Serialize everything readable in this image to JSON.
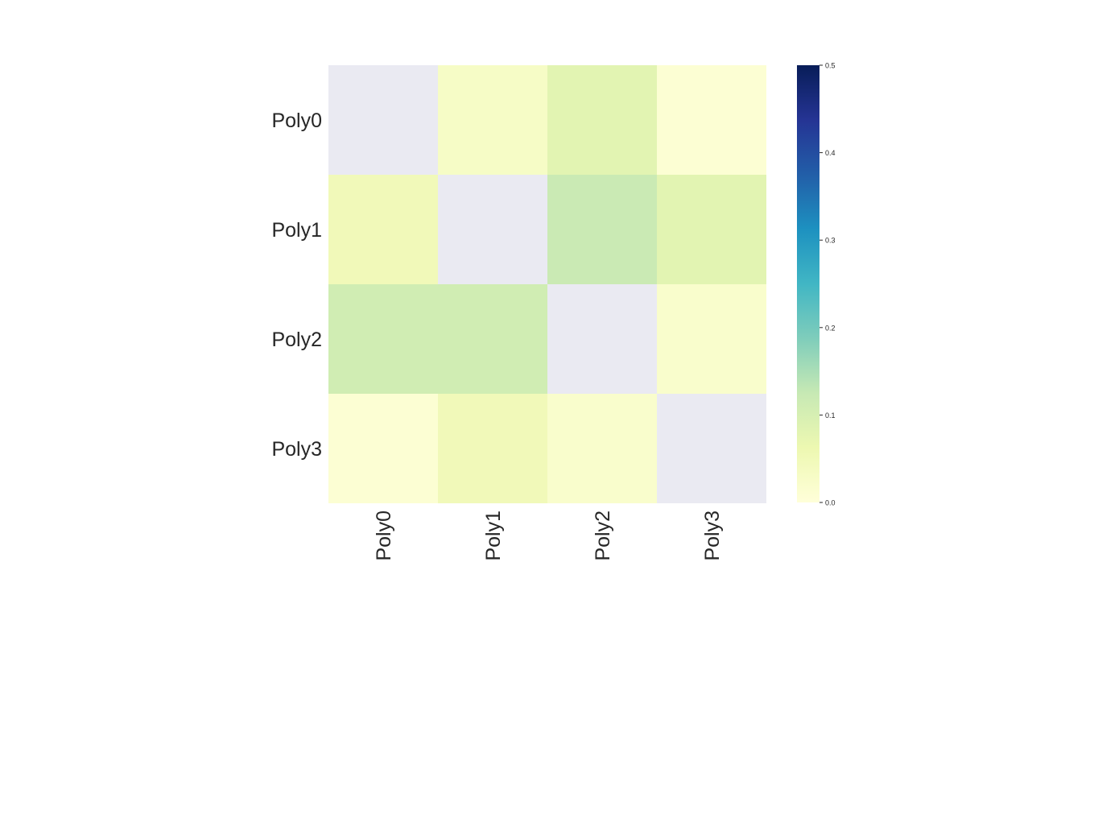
{
  "chart_data": {
    "type": "heatmap",
    "title": "",
    "xlabel": "",
    "ylabel": "",
    "rows": [
      "Poly0",
      "Poly1",
      "Poly2",
      "Poly3"
    ],
    "columns": [
      "Poly0",
      "Poly1",
      "Poly2",
      "Poly3"
    ],
    "values": [
      [
        null,
        0.03,
        0.08,
        0.01
      ],
      [
        0.05,
        null,
        0.12,
        0.08
      ],
      [
        0.11,
        0.11,
        null,
        0.02
      ],
      [
        0.01,
        0.05,
        0.02,
        null
      ]
    ],
    "masked_color": "#eaeaf2",
    "colormap": "YlGnBu",
    "colorbar": {
      "min": 0.0,
      "max": 0.5,
      "ticks": [
        "0.0",
        "0.1",
        "0.2",
        "0.3",
        "0.4",
        "0.5"
      ],
      "position": "right"
    },
    "grid": false
  }
}
